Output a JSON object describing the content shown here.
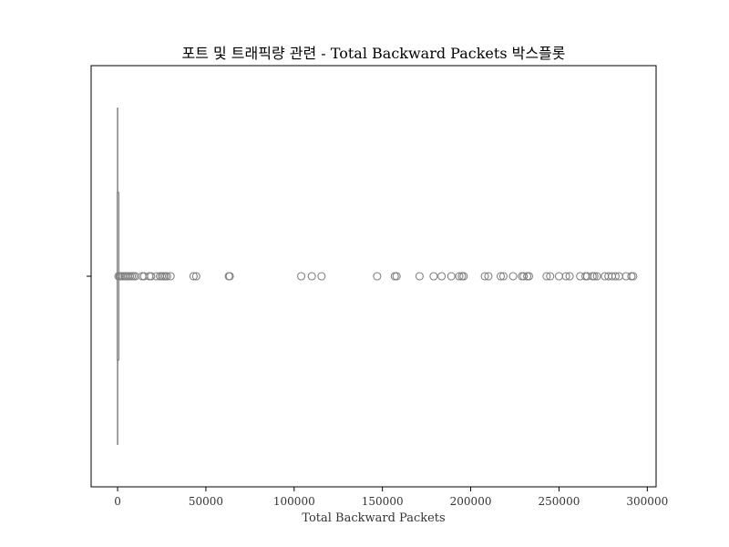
{
  "chart_data": {
    "type": "boxplot",
    "orientation": "horizontal",
    "title": "포트 및 트래픽량 관련 - Total Backward Packets 박스플롯",
    "xlabel": "Total Backward Packets",
    "ylabel": "",
    "xlim": [
      -15000,
      305000
    ],
    "xticks": [
      0,
      50000,
      100000,
      150000,
      200000,
      250000,
      300000
    ],
    "xtick_labels": [
      "0",
      "50000",
      "100000",
      "150000",
      "200000",
      "250000",
      "300000"
    ],
    "box": {
      "q1": 1,
      "median": 2,
      "q3": 5,
      "whisker_low": 1,
      "whisker_high": 11,
      "color": "#808080"
    },
    "outliers": [
      500,
      1200,
      2000,
      3000,
      4000,
      5000,
      6000,
      7000,
      8000,
      9000,
      10000,
      14000,
      15000,
      18000,
      19000,
      22000,
      24000,
      25000,
      26000,
      27000,
      28000,
      30000,
      43000,
      44500,
      63000,
      63500,
      104000,
      110000,
      115500,
      147000,
      157000,
      158000,
      171000,
      179000,
      183500,
      189000,
      193500,
      195000,
      196000,
      208000,
      210000,
      217000,
      218500,
      224000,
      229000,
      230000,
      232000,
      233000,
      243000,
      245000,
      250000,
      254000,
      256000,
      262000,
      265000,
      266000,
      269000,
      270000,
      271500,
      276000,
      278000,
      280000,
      282000,
      284000,
      288000,
      291000,
      292000
    ],
    "outlier_color": "#808080",
    "grid": false,
    "legend": "none"
  }
}
